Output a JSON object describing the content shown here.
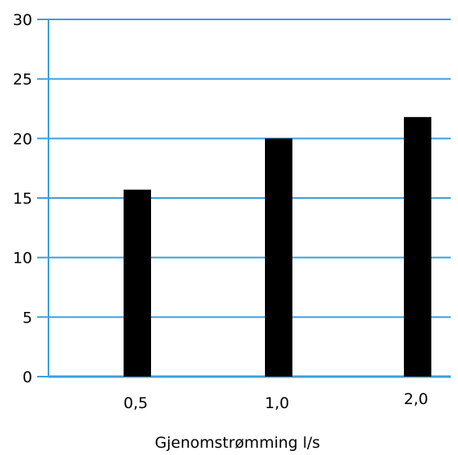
{
  "chart_data": {
    "type": "bar",
    "categories": [
      "0,5",
      "1,0",
      "2,0"
    ],
    "values": [
      15.7,
      20.0,
      21.8
    ],
    "title": "",
    "xlabel": "Gjenomstrømming l/s",
    "ylabel": "",
    "ylim": [
      0,
      30
    ],
    "yticks": [
      "0",
      "5",
      "10",
      "15",
      "20",
      "25",
      "30"
    ],
    "grid": true,
    "colors": {
      "bar": "#000000",
      "grid": "#3aa0de",
      "axis": "#3aa0de"
    }
  }
}
